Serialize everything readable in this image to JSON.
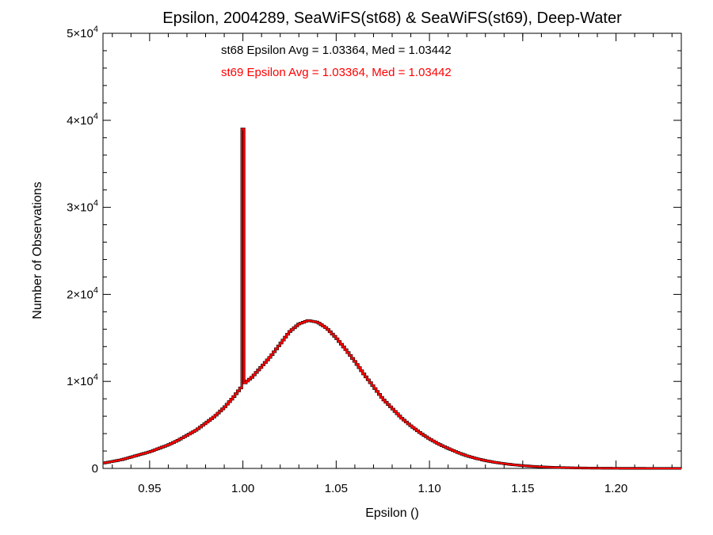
{
  "chart_data": {
    "type": "histogram-step",
    "title": "Epsilon, 2004289, SeaWiFS(st68) & SeaWiFS(st69), Deep-Water",
    "xlabel": "Epsilon ()",
    "ylabel": "Number of Observations",
    "xlim": [
      0.925,
      1.235
    ],
    "ylim": [
      0,
      50000
    ],
    "x_ticks": [
      0.95,
      1.0,
      1.05,
      1.1,
      1.15,
      1.2
    ],
    "x_tick_labels": [
      "0.95",
      "1.00",
      "1.05",
      "1.10",
      "1.15",
      "1.20"
    ],
    "y_ticks": [
      0,
      10000,
      20000,
      30000,
      40000,
      50000
    ],
    "y_tick_labels": [
      {
        "mantissa": "0",
        "exp": ""
      },
      {
        "mantissa": "1×10",
        "exp": "4"
      },
      {
        "mantissa": "2×10",
        "exp": "4"
      },
      {
        "mantissa": "3×10",
        "exp": "4"
      },
      {
        "mantissa": "4×10",
        "exp": "4"
      },
      {
        "mantissa": "5×10",
        "exp": "4"
      }
    ],
    "annotations": [
      {
        "text": "st68 Epsilon Avg = 1.03364, Med = 1.03442",
        "color": "#000000"
      },
      {
        "text": "st69 Epsilon Avg = 1.03364, Med = 1.03442",
        "color": "#ff0000"
      }
    ],
    "series": [
      {
        "name": "st68",
        "color": "#000000",
        "points": [
          [
            0.925,
            600
          ],
          [
            0.93,
            800
          ],
          [
            0.935,
            1000
          ],
          [
            0.94,
            1300
          ],
          [
            0.945,
            1600
          ],
          [
            0.95,
            1900
          ],
          [
            0.955,
            2300
          ],
          [
            0.96,
            2700
          ],
          [
            0.965,
            3200
          ],
          [
            0.97,
            3800
          ],
          [
            0.975,
            4400
          ],
          [
            0.98,
            5200
          ],
          [
            0.985,
            6000
          ],
          [
            0.99,
            7000
          ],
          [
            0.995,
            8200
          ],
          [
            0.999,
            9300
          ],
          [
            1.0,
            39000
          ],
          [
            1.001,
            9800
          ],
          [
            1.005,
            10500
          ],
          [
            1.01,
            11700
          ],
          [
            1.015,
            12900
          ],
          [
            1.02,
            14300
          ],
          [
            1.025,
            15700
          ],
          [
            1.03,
            16600
          ],
          [
            1.035,
            17000
          ],
          [
            1.04,
            16800
          ],
          [
            1.045,
            16100
          ],
          [
            1.05,
            15000
          ],
          [
            1.055,
            13700
          ],
          [
            1.06,
            12300
          ],
          [
            1.065,
            10800
          ],
          [
            1.07,
            9400
          ],
          [
            1.075,
            8000
          ],
          [
            1.08,
            6900
          ],
          [
            1.085,
            5800
          ],
          [
            1.09,
            4900
          ],
          [
            1.095,
            4100
          ],
          [
            1.1,
            3400
          ],
          [
            1.105,
            2800
          ],
          [
            1.11,
            2300
          ],
          [
            1.115,
            1850
          ],
          [
            1.12,
            1450
          ],
          [
            1.125,
            1150
          ],
          [
            1.13,
            900
          ],
          [
            1.135,
            700
          ],
          [
            1.14,
            550
          ],
          [
            1.145,
            420
          ],
          [
            1.15,
            320
          ],
          [
            1.155,
            240
          ],
          [
            1.16,
            180
          ],
          [
            1.165,
            130
          ],
          [
            1.17,
            100
          ],
          [
            1.175,
            75
          ],
          [
            1.18,
            55
          ],
          [
            1.185,
            40
          ],
          [
            1.19,
            30
          ],
          [
            1.195,
            22
          ],
          [
            1.2,
            16
          ],
          [
            1.21,
            10
          ],
          [
            1.22,
            6
          ],
          [
            1.235,
            4
          ]
        ]
      },
      {
        "name": "st69",
        "color": "#ff0000",
        "points": [
          [
            0.925,
            600
          ],
          [
            0.93,
            800
          ],
          [
            0.935,
            1000
          ],
          [
            0.94,
            1300
          ],
          [
            0.945,
            1600
          ],
          [
            0.95,
            1900
          ],
          [
            0.955,
            2300
          ],
          [
            0.96,
            2700
          ],
          [
            0.965,
            3200
          ],
          [
            0.97,
            3800
          ],
          [
            0.975,
            4400
          ],
          [
            0.98,
            5200
          ],
          [
            0.985,
            6000
          ],
          [
            0.99,
            7000
          ],
          [
            0.995,
            8200
          ],
          [
            0.999,
            9300
          ],
          [
            1.0,
            39000
          ],
          [
            1.001,
            9800
          ],
          [
            1.005,
            10500
          ],
          [
            1.01,
            11700
          ],
          [
            1.015,
            12900
          ],
          [
            1.02,
            14300
          ],
          [
            1.025,
            15700
          ],
          [
            1.03,
            16600
          ],
          [
            1.035,
            17000
          ],
          [
            1.04,
            16800
          ],
          [
            1.045,
            16100
          ],
          [
            1.05,
            15000
          ],
          [
            1.055,
            13700
          ],
          [
            1.06,
            12300
          ],
          [
            1.065,
            10800
          ],
          [
            1.07,
            9400
          ],
          [
            1.075,
            8000
          ],
          [
            1.08,
            6900
          ],
          [
            1.085,
            5800
          ],
          [
            1.09,
            4900
          ],
          [
            1.095,
            4100
          ],
          [
            1.1,
            3400
          ],
          [
            1.105,
            2800
          ],
          [
            1.11,
            2300
          ],
          [
            1.115,
            1850
          ],
          [
            1.12,
            1450
          ],
          [
            1.125,
            1150
          ],
          [
            1.13,
            900
          ],
          [
            1.135,
            700
          ],
          [
            1.14,
            550
          ],
          [
            1.145,
            420
          ],
          [
            1.15,
            320
          ],
          [
            1.155,
            240
          ],
          [
            1.16,
            180
          ],
          [
            1.165,
            130
          ],
          [
            1.17,
            100
          ],
          [
            1.175,
            75
          ],
          [
            1.18,
            55
          ],
          [
            1.185,
            40
          ],
          [
            1.19,
            30
          ],
          [
            1.195,
            22
          ],
          [
            1.2,
            16
          ],
          [
            1.21,
            10
          ],
          [
            1.22,
            6
          ],
          [
            1.235,
            4
          ]
        ]
      }
    ]
  }
}
